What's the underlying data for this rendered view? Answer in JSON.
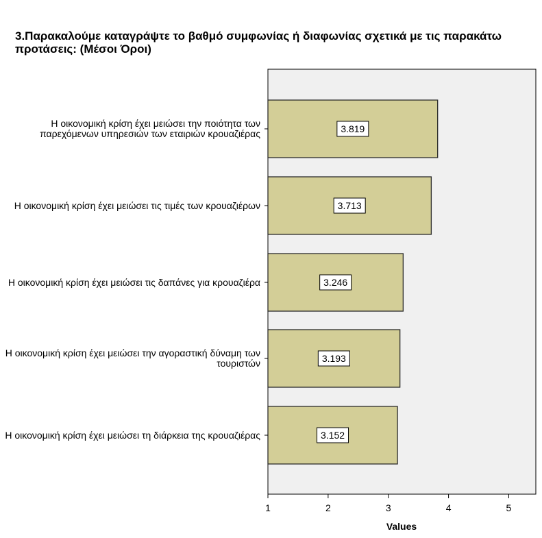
{
  "chart_data": {
    "type": "bar",
    "orientation": "horizontal",
    "title": "3.Παρακαλούμε καταγράψτε το βαθμό συμφωνίας ή διαφωνίας σχετικά με τις παρακάτω προτάσεις: (Μέσοι Όροι)",
    "categories": [
      "Η οικονομική κρίση έχει μειώσει την ποιότητα των παρεχόμενων υπηρεσιών των εταιριών κρουαζιέρας",
      "Η οικονομική κρίση έχει μειώσει τις τιμές των κρουαζιέρων",
      "Η οικονομική κρίση έχει μειώσει τις δαπάνες για κρουαζιέρα",
      "Η οικονομική κρίση έχει μειώσει την αγοραστική δύναμη των τουριστών",
      "Η οικονομική κρίση έχει μειώσει τη διάρκεια της κρουαζιέρας"
    ],
    "values": [
      3.819,
      3.713,
      3.246,
      3.193,
      3.152
    ],
    "data_labels": [
      "3.819",
      "3.713",
      "3.246",
      "3.193",
      "3.152"
    ],
    "xlabel": "Values",
    "ylabel": "",
    "xlim": [
      1,
      5.45
    ],
    "ticks": [
      "1",
      "2",
      "3",
      "4",
      "5"
    ],
    "grid": false,
    "colors": {
      "bar_fill": "#d3ce97",
      "bar_stroke": "#2b2b2b",
      "plot_background": "#f0f0f0",
      "axis": "#000000"
    }
  }
}
